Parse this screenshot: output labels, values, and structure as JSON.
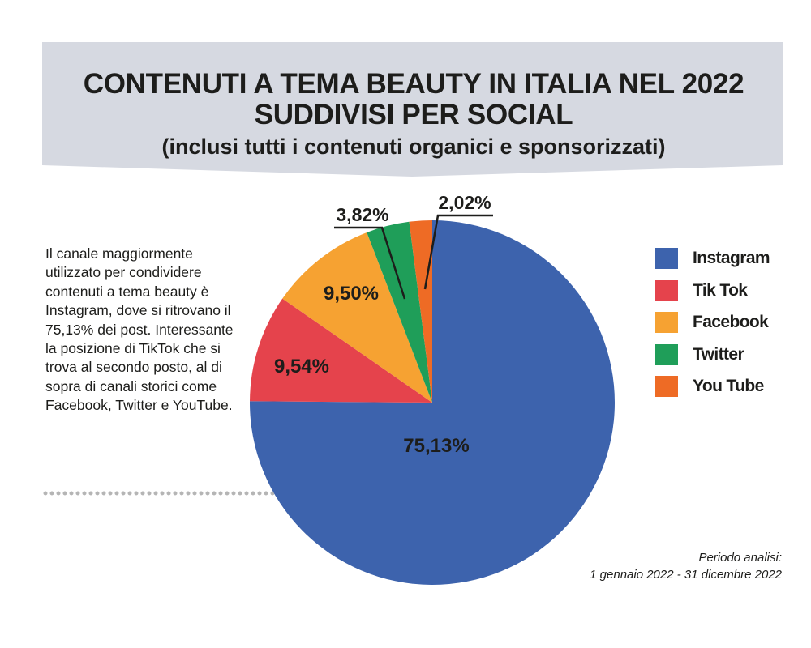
{
  "header": {
    "title_line1": "CONTENUTI A TEMA BEAUTY IN ITALIA NEL 2022",
    "title_line2": "SUDDIVISI PER SOCIAL",
    "subtitle": "(inclusi tutti i contenuti organici e sponsorizzati)"
  },
  "description": "Il canale maggiormente utilizzato per condividere contenuti a tema beauty è Instagram, dove si ritrovano il 75,13% dei post. Interessante la posizione di TikTok che si trova al secondo posto, al di sopra di canali storici come Facebook, Twitter e YouTube.",
  "note": {
    "line1": "Periodo analisi:",
    "line2": "1 gennaio 2022 - 31 dicembre 2022"
  },
  "colors": {
    "banner": "#d6d9e1",
    "dots": "#b5b5b5"
  },
  "chart_data": {
    "type": "pie",
    "title": "CONTENUTI A TEMA BEAUTY IN ITALIA NEL 2022 SUDDIVISI PER SOCIAL",
    "slices": [
      {
        "name": "Instagram",
        "value": 75.13,
        "label": "75,13%",
        "color": "#3d63ad"
      },
      {
        "name": "TikTok",
        "value": 9.54,
        "label": "9,54%",
        "color": "#e5434c"
      },
      {
        "name": "Facebook",
        "value": 9.5,
        "label": "9,50%",
        "color": "#f6a232"
      },
      {
        "name": "Twitter",
        "value": 3.82,
        "label": "3,82%",
        "color": "#1f9e59"
      },
      {
        "name": "YouTube",
        "value": 2.02,
        "label": "2,02%",
        "color": "#ee6b25"
      }
    ],
    "legend": [
      {
        "label": "Instagram",
        "color": "#3d63ad"
      },
      {
        "label": "Tik Tok",
        "color": "#e5434c"
      },
      {
        "label": "Facebook",
        "color": "#f6a232"
      },
      {
        "label": "Twitter",
        "color": "#1f9e59"
      },
      {
        "label": "You Tube",
        "color": "#ee6b25"
      }
    ],
    "legend_position": "right",
    "start": "top, clockwise"
  }
}
